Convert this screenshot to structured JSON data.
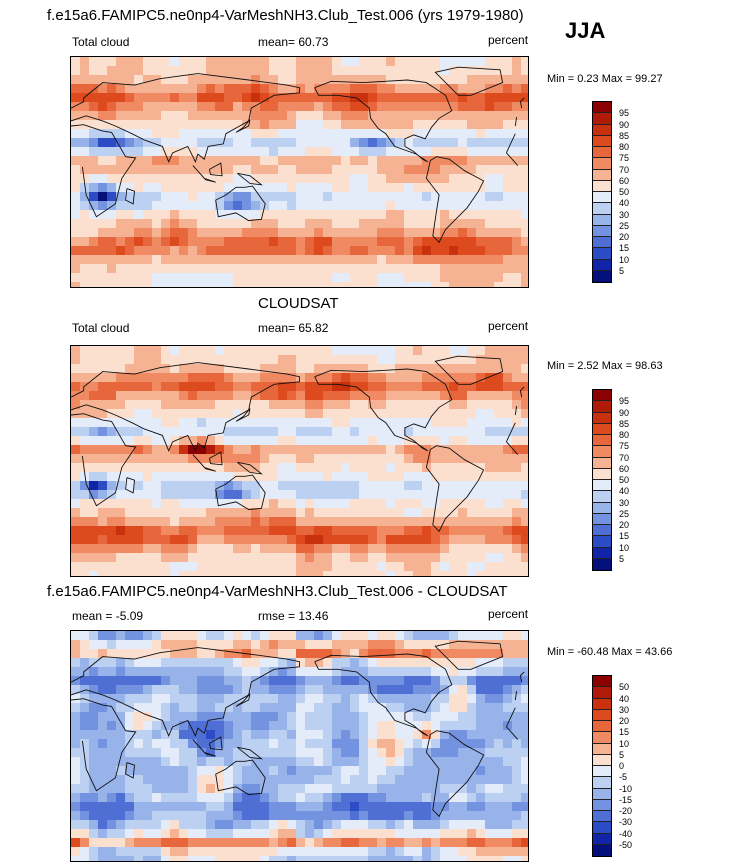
{
  "season": "JJA",
  "chart_data": [
    {
      "type": "heatmap",
      "title": "f.e15a6.FAMIPC5.ne0np4-VarMeshNH3.Club_Test.006 (yrs 1979-1980)",
      "variable": "Total cloud",
      "stat_label": "mean=  60.73",
      "mean": 60.73,
      "units": "percent",
      "range_label": "Min =   0.23 Max =  99.27",
      "min": 0.23,
      "max": 99.27,
      "levels": [
        "95",
        "90",
        "85",
        "80",
        "75",
        "70",
        "60",
        "50",
        "40",
        "30",
        "25",
        "20",
        "15",
        "10",
        "5"
      ],
      "colors": [
        "#8b0000",
        "#b01a08",
        "#c9300e",
        "#dc4a1e",
        "#e8663b",
        "#f08a63",
        "#f6b394",
        "#fbe0cf",
        "#e4ecfa",
        "#bcd0f2",
        "#97b3ea",
        "#7392e0",
        "#4f6fd5",
        "#2c4cc6",
        "#1024a8",
        "#05107a"
      ]
    },
    {
      "type": "heatmap",
      "title": "CLOUDSAT",
      "variable": "Total cloud",
      "stat_label": "mean=  65.82",
      "mean": 65.82,
      "units": "percent",
      "range_label": "Min =   2.52 Max =  98.63",
      "min": 2.52,
      "max": 98.63,
      "levels": [
        "95",
        "90",
        "85",
        "80",
        "75",
        "70",
        "60",
        "50",
        "40",
        "30",
        "25",
        "20",
        "15",
        "10",
        "5"
      ],
      "colors": [
        "#8b0000",
        "#b01a08",
        "#c9300e",
        "#dc4a1e",
        "#e8663b",
        "#f08a63",
        "#f6b394",
        "#fbe0cf",
        "#e4ecfa",
        "#bcd0f2",
        "#97b3ea",
        "#7392e0",
        "#4f6fd5",
        "#2c4cc6",
        "#1024a8",
        "#05107a"
      ]
    },
    {
      "type": "heatmap",
      "title": "f.e15a6.FAMIPC5.ne0np4-VarMeshNH3.Club_Test.006 - CLOUDSAT",
      "stat_label": "mean =  -5.09",
      "mean": -5.09,
      "rmse_label": "rmse =  13.46",
      "rmse": 13.46,
      "units": "percent",
      "range_label": "Min = -60.48 Max =  43.66",
      "min": -60.48,
      "max": 43.66,
      "levels": [
        "50",
        "40",
        "30",
        "20",
        "15",
        "10",
        "5",
        "0",
        "-5",
        "-10",
        "-15",
        "-20",
        "-30",
        "-40",
        "-50"
      ],
      "colors": [
        "#8b0000",
        "#b01a08",
        "#c9300e",
        "#dc4a1e",
        "#e8663b",
        "#f08a63",
        "#f6b394",
        "#fbe0cf",
        "#e4ecfa",
        "#bcd0f2",
        "#97b3ea",
        "#7392e0",
        "#4f6fd5",
        "#2c4cc6",
        "#1024a8",
        "#05107a"
      ]
    }
  ]
}
